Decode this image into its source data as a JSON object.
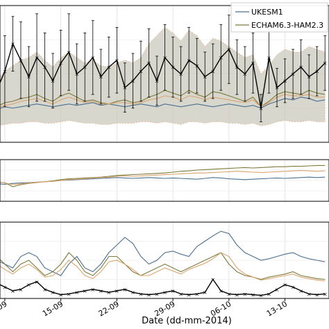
{
  "chart_data": {
    "type": "line",
    "xlabel": "Date (dd-mm-2014)",
    "x_ticks": [
      "09",
      "15-09",
      "22-09",
      "29-09",
      "06-10",
      "13-10"
    ],
    "x_tick_days": [
      8,
      15,
      22,
      29,
      36,
      43
    ],
    "x_range_days": [
      7.4,
      48.5
    ],
    "x_days": [
      7,
      8,
      9,
      10,
      11,
      12,
      13,
      14,
      15,
      16,
      17,
      18,
      19,
      20,
      21,
      22,
      23,
      24,
      25,
      26,
      27,
      28,
      29,
      30,
      31,
      32,
      33,
      34,
      35,
      36,
      37,
      38,
      39,
      40,
      41,
      42,
      43,
      44,
      45,
      46,
      47,
      48
    ],
    "grid": true,
    "legend_position": "top-right",
    "colors": {
      "ukesm": "#4a6f8f",
      "echam": "#7d7a3a",
      "orange": "#d9a46e",
      "obs": "#000000",
      "band": "#c8c6b8",
      "band_edge": "#e6b592"
    },
    "panels": [
      {
        "name": "top",
        "ylim": [
          0,
          1
        ],
        "series": [
          {
            "name": "UKESM1",
            "values": [
              0.24,
              0.26,
              0.25,
              0.26,
              0.27,
              0.28,
              0.27,
              0.26,
              0.27,
              0.28,
              0.27,
              0.28,
              0.29,
              0.27,
              0.28,
              0.27,
              0.26,
              0.27,
              0.28,
              0.27,
              0.26,
              0.28,
              0.27,
              0.26,
              0.27,
              0.28,
              0.27,
              0.26,
              0.27,
              0.28,
              0.27,
              0.26,
              0.27,
              0.25,
              0.28,
              0.3,
              0.32,
              0.31,
              0.33,
              0.32,
              0.3,
              0.31
            ]
          },
          {
            "name": "ECHAM6.3-HAM2.3",
            "values": [
              0.26,
              0.29,
              0.3,
              0.32,
              0.33,
              0.35,
              0.32,
              0.3,
              0.34,
              0.36,
              0.33,
              0.3,
              0.31,
              0.29,
              0.28,
              0.3,
              0.31,
              0.29,
              0.3,
              0.33,
              0.35,
              0.38,
              0.36,
              0.34,
              0.38,
              0.35,
              0.33,
              0.37,
              0.36,
              0.34,
              0.32,
              0.3,
              0.33,
              0.26,
              0.3,
              0.35,
              0.37,
              0.36,
              0.35,
              0.38,
              0.36,
              0.35
            ]
          },
          {
            "name": "",
            "values": [
              0.25,
              0.27,
              0.28,
              0.3,
              0.31,
              0.32,
              0.3,
              0.28,
              0.31,
              0.33,
              0.31,
              0.29,
              0.3,
              0.28,
              0.28,
              0.29,
              0.29,
              0.28,
              0.29,
              0.31,
              0.32,
              0.34,
              0.33,
              0.31,
              0.34,
              0.33,
              0.31,
              0.33,
              0.32,
              0.31,
              0.3,
              0.29,
              0.31,
              0.26,
              0.29,
              0.33,
              0.35,
              0.34,
              0.34,
              0.35,
              0.33,
              0.33
            ]
          },
          {
            "name": "",
            "values": [
              0.38,
              0.52,
              0.72,
              0.6,
              0.48,
              0.62,
              0.55,
              0.45,
              0.58,
              0.66,
              0.5,
              0.55,
              0.62,
              0.48,
              0.55,
              0.6,
              0.4,
              0.45,
              0.52,
              0.58,
              0.45,
              0.62,
              0.55,
              0.5,
              0.6,
              0.56,
              0.48,
              0.52,
              0.62,
              0.68,
              0.55,
              0.5,
              0.58,
              0.25,
              0.62,
              0.4,
              0.45,
              0.5,
              0.55,
              0.48,
              0.52,
              0.58
            ]
          }
        ],
        "band": {
          "lower": [
            0.12,
            0.13,
            0.14,
            0.14,
            0.15,
            0.15,
            0.14,
            0.14,
            0.15,
            0.16,
            0.15,
            0.14,
            0.14,
            0.13,
            0.13,
            0.14,
            0.14,
            0.14,
            0.15,
            0.15,
            0.14,
            0.15,
            0.14,
            0.13,
            0.15,
            0.15,
            0.14,
            0.15,
            0.15,
            0.14,
            0.14,
            0.13,
            0.14,
            0.12,
            0.13,
            0.15,
            0.16,
            0.15,
            0.15,
            0.16,
            0.15,
            0.15
          ],
          "upper": [
            0.45,
            0.52,
            0.56,
            0.6,
            0.62,
            0.66,
            0.6,
            0.55,
            0.62,
            0.66,
            0.62,
            0.58,
            0.6,
            0.56,
            0.55,
            0.58,
            0.6,
            0.58,
            0.62,
            0.72,
            0.78,
            0.84,
            0.8,
            0.74,
            0.82,
            0.78,
            0.7,
            0.76,
            0.74,
            0.7,
            0.66,
            0.62,
            0.64,
            0.5,
            0.56,
            0.64,
            0.68,
            0.66,
            0.66,
            0.7,
            0.68,
            0.66
          ]
        },
        "error_bars": [
          0.18,
          0.26,
          0.2,
          0.28,
          0.22,
          0.32,
          0.25,
          0.2,
          0.24,
          0.28,
          0.22,
          0.25,
          0.27,
          0.2,
          0.22,
          0.24,
          0.18,
          0.2,
          0.22,
          0.25,
          0.18,
          0.24,
          0.22,
          0.2,
          0.24,
          0.2,
          0.18,
          0.2,
          0.24,
          0.25,
          0.2,
          0.2,
          0.22,
          0.1,
          0.26,
          0.14,
          0.16,
          0.18,
          0.2,
          0.16,
          0.18,
          0.2
        ]
      },
      {
        "name": "middle",
        "ylim": [
          0,
          1
        ],
        "series": [
          {
            "name": "UKESM1",
            "values": [
              0.42,
              0.41,
              0.43,
              0.44,
              0.45,
              0.46,
              0.47,
              0.48,
              0.5,
              0.51,
              0.52,
              0.53,
              0.54,
              0.55,
              0.56,
              0.57,
              0.56,
              0.55,
              0.56,
              0.57,
              0.56,
              0.55,
              0.56,
              0.55,
              0.54,
              0.53,
              0.55,
              0.57,
              0.56,
              0.54,
              0.53,
              0.52,
              0.53,
              0.54,
              0.55,
              0.56,
              0.55,
              0.56,
              0.57,
              0.58,
              0.57,
              0.58
            ]
          },
          {
            "name": "ECHAM6.3-HAM2.3",
            "values": [
              0.46,
              0.45,
              0.35,
              0.4,
              0.43,
              0.45,
              0.47,
              0.49,
              0.52,
              0.54,
              0.55,
              0.56,
              0.57,
              0.58,
              0.6,
              0.62,
              0.63,
              0.64,
              0.65,
              0.66,
              0.67,
              0.68,
              0.7,
              0.72,
              0.73,
              0.75,
              0.76,
              0.77,
              0.78,
              0.79,
              0.8,
              0.81,
              0.8,
              0.81,
              0.82,
              0.83,
              0.83,
              0.84,
              0.84,
              0.85,
              0.86,
              0.86
            ]
          },
          {
            "name": "",
            "values": [
              0.48,
              0.44,
              0.4,
              0.42,
              0.44,
              0.46,
              0.47,
              0.48,
              0.5,
              0.52,
              0.53,
              0.54,
              0.56,
              0.57,
              0.58,
              0.6,
              0.61,
              0.6,
              0.61,
              0.62,
              0.63,
              0.64,
              0.65,
              0.66,
              0.67,
              0.68,
              0.68,
              0.69,
              0.7,
              0.71,
              0.72,
              0.71,
              0.7,
              0.69,
              0.7,
              0.71,
              0.72,
              0.73,
              0.74,
              0.73,
              0.72,
              0.73
            ]
          }
        ]
      },
      {
        "name": "bottom",
        "ylim": [
          0,
          1
        ],
        "series": [
          {
            "name": "UKESM1",
            "values": [
              0.5,
              0.45,
              0.4,
              0.55,
              0.6,
              0.55,
              0.4,
              0.35,
              0.3,
              0.45,
              0.55,
              0.4,
              0.35,
              0.45,
              0.6,
              0.7,
              0.8,
              0.72,
              0.55,
              0.45,
              0.5,
              0.6,
              0.62,
              0.58,
              0.55,
              0.68,
              0.75,
              0.82,
              0.88,
              0.85,
              0.7,
              0.6,
              0.55,
              0.5,
              0.52,
              0.55,
              0.58,
              0.6,
              0.55,
              0.52,
              0.5,
              0.48
            ]
          },
          {
            "name": "ECHAM6.3-HAM2.3",
            "values": [
              0.55,
              0.45,
              0.35,
              0.45,
              0.5,
              0.4,
              0.3,
              0.35,
              0.45,
              0.6,
              0.5,
              0.35,
              0.3,
              0.4,
              0.55,
              0.55,
              0.45,
              0.35,
              0.3,
              0.35,
              0.4,
              0.45,
              0.4,
              0.35,
              0.4,
              0.45,
              0.5,
              0.55,
              0.6,
              0.45,
              0.35,
              0.3,
              0.28,
              0.25,
              0.28,
              0.3,
              0.32,
              0.35,
              0.3,
              0.28,
              0.26,
              0.25
            ]
          },
          {
            "name": "",
            "values": [
              0.45,
              0.38,
              0.32,
              0.4,
              0.45,
              0.38,
              0.28,
              0.3,
              0.38,
              0.5,
              0.42,
              0.3,
              0.26,
              0.35,
              0.48,
              0.5,
              0.45,
              0.38,
              0.3,
              0.3,
              0.35,
              0.4,
              0.36,
              0.32,
              0.38,
              0.42,
              0.46,
              0.52,
              0.6,
              0.55,
              0.4,
              0.32,
              0.28,
              0.24,
              0.26,
              0.28,
              0.3,
              0.32,
              0.28,
              0.26,
              0.24,
              0.23
            ]
          },
          {
            "name": "",
            "values": [
              0.2,
              0.15,
              0.1,
              0.12,
              0.18,
              0.22,
              0.12,
              0.08,
              0.05,
              0.06,
              0.08,
              0.1,
              0.12,
              0.1,
              0.08,
              0.1,
              0.12,
              0.08,
              0.06,
              0.05,
              0.06,
              0.08,
              0.1,
              0.06,
              0.05,
              0.06,
              0.08,
              0.25,
              0.1,
              0.06,
              0.05,
              0.06,
              0.05,
              0.04,
              0.06,
              0.12,
              0.18,
              0.15,
              0.1,
              0.06,
              0.05,
              0.06
            ]
          }
        ]
      }
    ]
  }
}
